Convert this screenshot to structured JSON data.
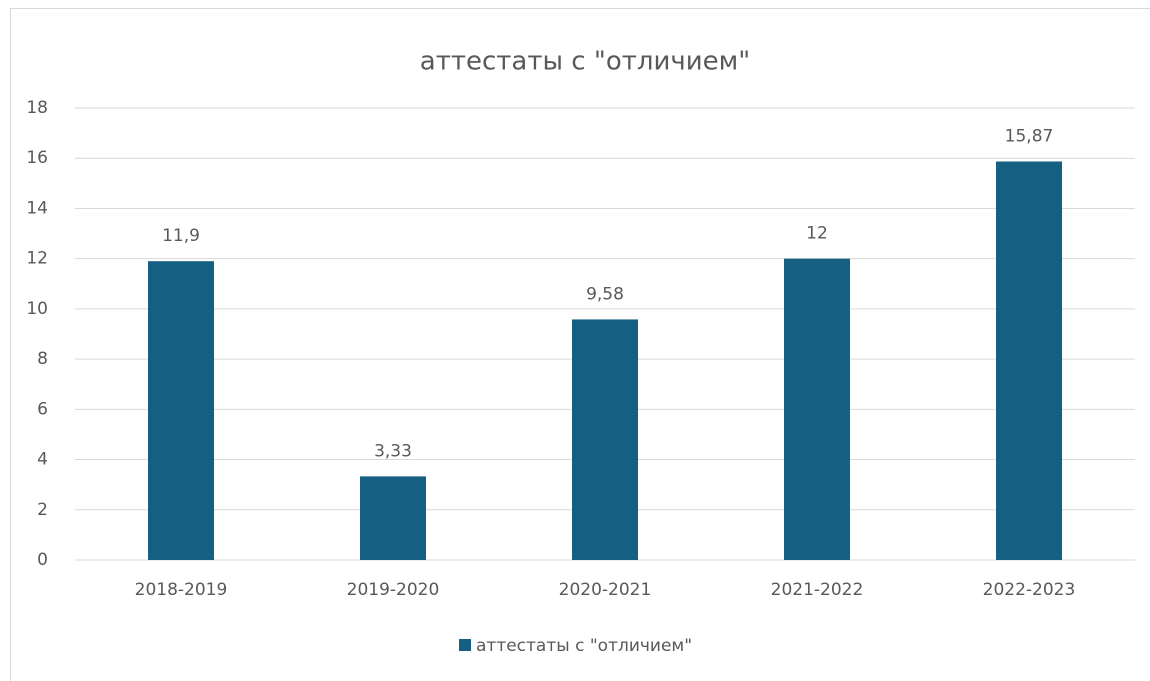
{
  "chart_data": {
    "type": "bar",
    "title": "аттестаты с \"отличием\"",
    "categories": [
      "2018-2019",
      "2019-2020",
      "2020-2021",
      "2021-2022",
      "2022-2023"
    ],
    "series": [
      {
        "name": "аттестаты с \"отличием\"",
        "color": "#156082",
        "values": [
          11.9,
          3.33,
          9.58,
          12,
          15.87
        ],
        "value_labels": [
          "11,9",
          "3,33",
          "9,58",
          "12",
          "15,87"
        ]
      }
    ],
    "ylim": [
      0,
      18
    ],
    "yticks": [
      0,
      2,
      4,
      6,
      8,
      10,
      12,
      14,
      16,
      18
    ],
    "grid": true,
    "legend": "bottom"
  }
}
